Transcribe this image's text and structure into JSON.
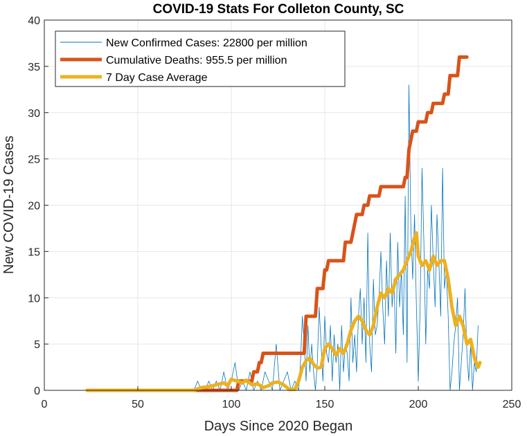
{
  "chart_data": {
    "type": "line",
    "title": "COVID-19 Stats For Colleton County, SC",
    "xlabel": "Days Since 2020 Began",
    "ylabel": "New COVID-19 Cases",
    "xlim": [
      0,
      250
    ],
    "ylim": [
      0,
      40
    ],
    "xticks": [
      0,
      50,
      100,
      150,
      200,
      250
    ],
    "yticks": [
      0,
      5,
      10,
      15,
      20,
      25,
      30,
      35,
      40
    ],
    "grid": true,
    "legend_position": "top-left",
    "series": [
      {
        "name": "New Confirmed Cases: 22800 per million",
        "color": "#0072BD",
        "style": "thin",
        "points": [
          [
            23,
            0
          ],
          [
            80,
            0
          ],
          [
            82,
            1
          ],
          [
            84,
            0
          ],
          [
            86,
            0
          ],
          [
            88,
            1
          ],
          [
            90,
            0
          ],
          [
            92,
            1
          ],
          [
            94,
            0
          ],
          [
            96,
            2
          ],
          [
            98,
            0
          ],
          [
            100,
            1
          ],
          [
            102,
            3
          ],
          [
            104,
            0
          ],
          [
            106,
            1
          ],
          [
            108,
            0
          ],
          [
            110,
            2
          ],
          [
            112,
            0
          ],
          [
            114,
            1
          ],
          [
            116,
            0
          ],
          [
            118,
            2
          ],
          [
            120,
            1
          ],
          [
            122,
            0
          ],
          [
            124,
            5
          ],
          [
            126,
            0
          ],
          [
            128,
            1
          ],
          [
            130,
            2
          ],
          [
            132,
            0
          ],
          [
            134,
            1
          ],
          [
            136,
            0
          ],
          [
            137,
            3
          ],
          [
            138,
            8
          ],
          [
            139,
            5
          ],
          [
            140,
            1
          ],
          [
            141,
            7
          ],
          [
            142,
            2
          ],
          [
            143,
            5
          ],
          [
            144,
            2
          ],
          [
            145,
            0
          ],
          [
            146,
            3
          ],
          [
            147,
            9
          ],
          [
            148,
            5
          ],
          [
            149,
            1
          ],
          [
            150,
            8
          ],
          [
            151,
            4
          ],
          [
            152,
            3
          ],
          [
            153,
            7
          ],
          [
            154,
            1
          ],
          [
            155,
            6
          ],
          [
            156,
            3
          ],
          [
            157,
            5
          ],
          [
            158,
            0
          ],
          [
            159,
            7
          ],
          [
            160,
            2
          ],
          [
            161,
            5
          ],
          [
            162,
            4
          ],
          [
            163,
            1
          ],
          [
            164,
            10
          ],
          [
            165,
            3
          ],
          [
            166,
            6
          ],
          [
            167,
            2
          ],
          [
            168,
            8
          ],
          [
            169,
            11
          ],
          [
            170,
            5
          ],
          [
            171,
            10
          ],
          [
            172,
            3
          ],
          [
            173,
            17
          ],
          [
            174,
            5
          ],
          [
            175,
            2
          ],
          [
            176,
            12
          ],
          [
            177,
            6
          ],
          [
            178,
            7
          ],
          [
            179,
            10
          ],
          [
            180,
            15
          ],
          [
            181,
            9
          ],
          [
            182,
            5
          ],
          [
            183,
            14
          ],
          [
            184,
            8
          ],
          [
            185,
            17
          ],
          [
            186,
            9
          ],
          [
            187,
            12
          ],
          [
            188,
            4
          ],
          [
            189,
            16
          ],
          [
            190,
            9
          ],
          [
            191,
            13
          ],
          [
            192,
            6
          ],
          [
            193,
            21
          ],
          [
            194,
            3
          ],
          [
            195,
            33
          ],
          [
            196,
            18
          ],
          [
            197,
            12
          ],
          [
            198,
            19
          ],
          [
            199,
            9
          ],
          [
            200,
            1
          ],
          [
            201,
            9
          ],
          [
            202,
            24
          ],
          [
            203,
            16
          ],
          [
            204,
            5
          ],
          [
            205,
            13
          ],
          [
            206,
            11
          ],
          [
            207,
            20
          ],
          [
            208,
            14
          ],
          [
            209,
            9
          ],
          [
            210,
            19
          ],
          [
            211,
            14
          ],
          [
            212,
            8
          ],
          [
            213,
            24
          ],
          [
            214,
            11
          ],
          [
            215,
            13
          ],
          [
            216,
            8
          ],
          [
            217,
            0
          ],
          [
            218,
            2
          ],
          [
            219,
            5
          ],
          [
            220,
            7
          ],
          [
            221,
            10
          ],
          [
            222,
            0
          ],
          [
            223,
            3
          ],
          [
            224,
            6
          ],
          [
            225,
            11
          ],
          [
            226,
            4
          ],
          [
            227,
            1
          ],
          [
            228,
            5
          ],
          [
            229,
            0
          ],
          [
            230,
            3
          ],
          [
            231,
            2
          ],
          [
            232,
            7
          ]
        ]
      },
      {
        "name": "Cumulative Deaths: 955.5 per million",
        "color": "#D95319",
        "style": "thick",
        "points": [
          [
            23,
            0
          ],
          [
            103,
            0
          ],
          [
            104,
            1
          ],
          [
            111,
            1
          ],
          [
            112,
            2
          ],
          [
            114,
            2
          ],
          [
            115,
            3
          ],
          [
            116,
            3
          ],
          [
            117,
            4
          ],
          [
            139,
            4
          ],
          [
            140,
            8
          ],
          [
            145,
            8
          ],
          [
            146,
            11
          ],
          [
            149,
            11
          ],
          [
            150,
            13
          ],
          [
            151,
            13
          ],
          [
            152,
            14
          ],
          [
            160,
            14
          ],
          [
            161,
            16
          ],
          [
            164,
            16
          ],
          [
            165,
            17
          ],
          [
            166,
            18
          ],
          [
            167,
            19
          ],
          [
            170,
            19
          ],
          [
            171,
            20
          ],
          [
            173,
            20
          ],
          [
            174,
            21
          ],
          [
            179,
            21
          ],
          [
            180,
            22
          ],
          [
            192,
            22
          ],
          [
            193,
            23
          ],
          [
            194,
            23
          ],
          [
            195,
            26
          ],
          [
            196,
            27
          ],
          [
            197,
            28
          ],
          [
            199,
            28
          ],
          [
            200,
            29
          ],
          [
            204,
            29
          ],
          [
            205,
            30
          ],
          [
            207,
            30
          ],
          [
            208,
            31
          ],
          [
            213,
            31
          ],
          [
            214,
            32
          ],
          [
            216,
            32
          ],
          [
            217,
            34
          ],
          [
            221,
            34
          ],
          [
            222,
            36
          ],
          [
            226,
            36
          ]
        ]
      },
      {
        "name": "7 Day Case Average",
        "color": "#EDB120",
        "style": "thick",
        "points": [
          [
            23,
            0
          ],
          [
            80,
            0
          ],
          [
            84,
            0.3
          ],
          [
            88,
            0.4
          ],
          [
            92,
            0.6
          ],
          [
            96,
            0.8
          ],
          [
            98,
            0.5
          ],
          [
            100,
            1.2
          ],
          [
            103,
            1.0
          ],
          [
            106,
            0.8
          ],
          [
            108,
            1.1
          ],
          [
            111,
            0.6
          ],
          [
            114,
            0.7
          ],
          [
            117,
            0.3
          ],
          [
            120,
            0.5
          ],
          [
            122,
            0.8
          ],
          [
            125,
            0.9
          ],
          [
            128,
            0.6
          ],
          [
            131,
            0.1
          ],
          [
            134,
            0.1
          ],
          [
            136,
            1.0
          ],
          [
            138,
            2.5
          ],
          [
            140,
            3.2
          ],
          [
            142,
            3.5
          ],
          [
            144,
            2.8
          ],
          [
            146,
            2.4
          ],
          [
            148,
            2.5
          ],
          [
            150,
            4.5
          ],
          [
            152,
            5.0
          ],
          [
            154,
            4.5
          ],
          [
            156,
            3.8
          ],
          [
            158,
            4.5
          ],
          [
            160,
            4.0
          ],
          [
            162,
            5.0
          ],
          [
            164,
            6.5
          ],
          [
            166,
            7.5
          ],
          [
            168,
            8.0
          ],
          [
            170,
            7.5
          ],
          [
            172,
            6.5
          ],
          [
            174,
            6.0
          ],
          [
            176,
            7.0
          ],
          [
            178,
            9.0
          ],
          [
            180,
            10.5
          ],
          [
            182,
            10.0
          ],
          [
            184,
            11.0
          ],
          [
            186,
            10.5
          ],
          [
            188,
            12.0
          ],
          [
            190,
            12.5
          ],
          [
            192,
            13.0
          ],
          [
            194,
            14.0
          ],
          [
            196,
            15.0
          ],
          [
            198,
            16.5
          ],
          [
            199,
            17.0
          ],
          [
            200,
            14.5
          ],
          [
            202,
            13.5
          ],
          [
            204,
            14.0
          ],
          [
            206,
            13.0
          ],
          [
            208,
            14.5
          ],
          [
            210,
            13.5
          ],
          [
            212,
            14.0
          ],
          [
            214,
            14.0
          ],
          [
            216,
            12.0
          ],
          [
            218,
            9.0
          ],
          [
            220,
            7.0
          ],
          [
            222,
            8.0
          ],
          [
            224,
            7.0
          ],
          [
            226,
            5.0
          ],
          [
            228,
            5.5
          ],
          [
            230,
            3.5
          ],
          [
            232,
            2.5
          ],
          [
            233,
            3.0
          ]
        ]
      }
    ]
  }
}
